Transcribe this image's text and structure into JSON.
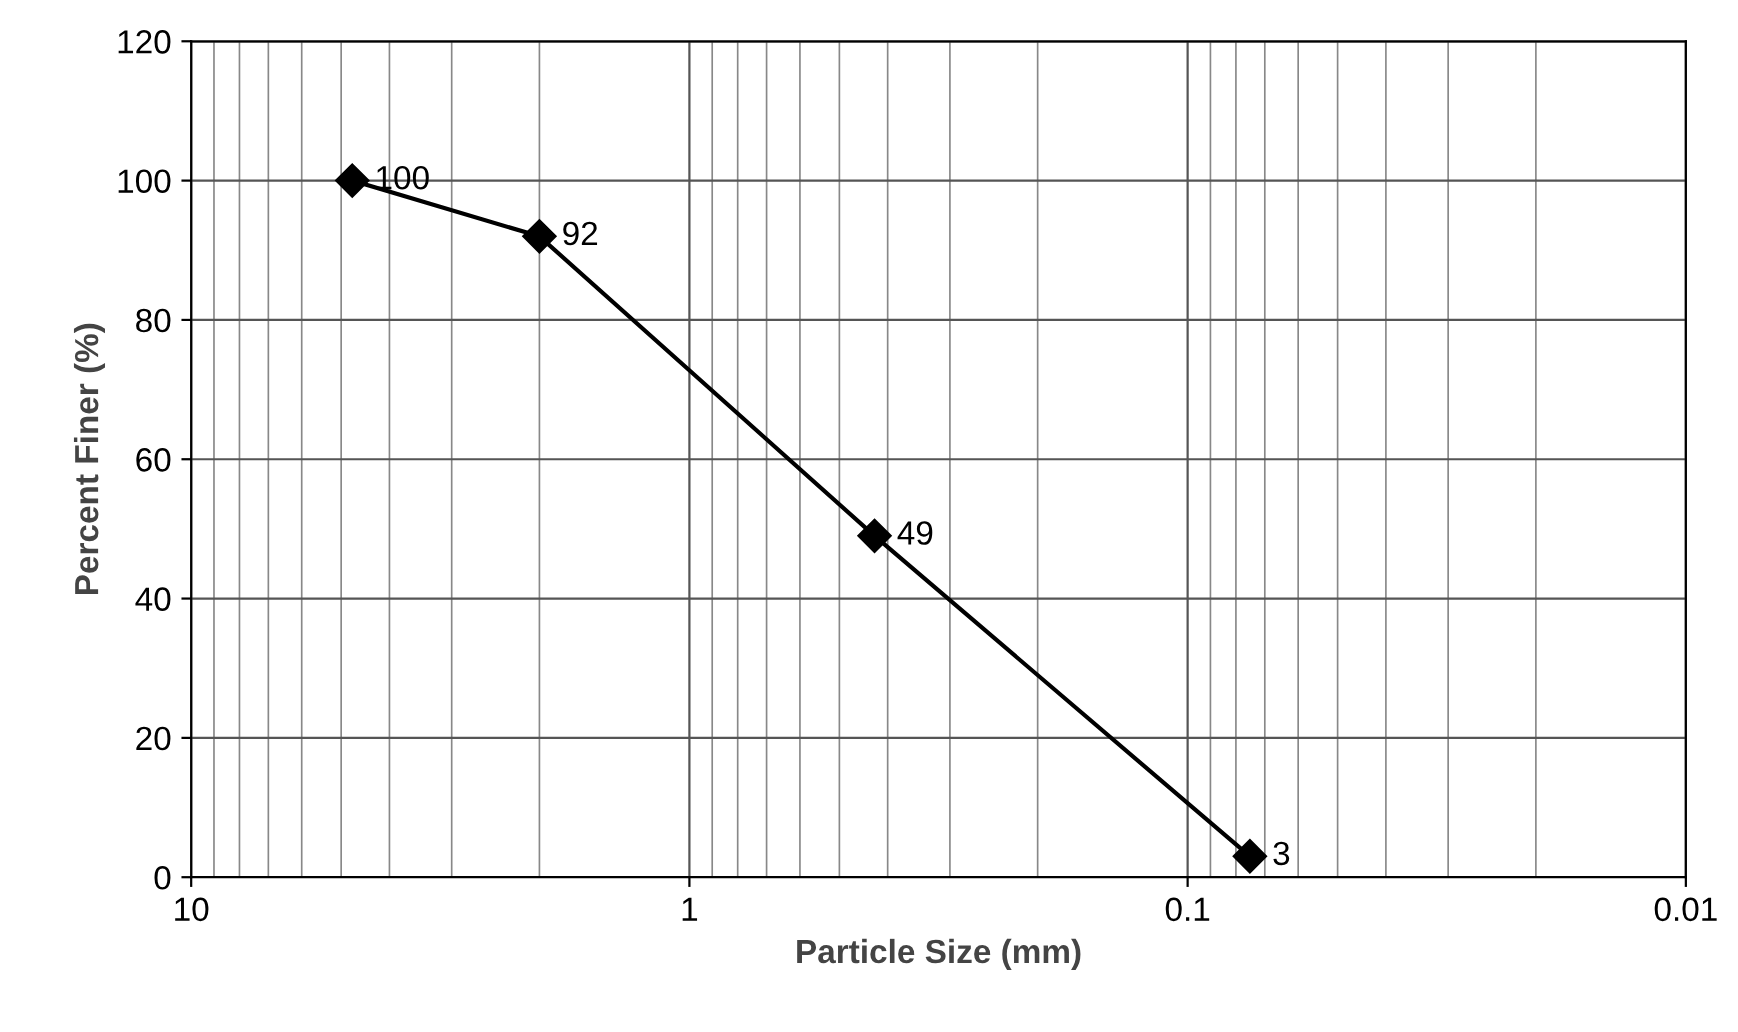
{
  "chart_data": {
    "type": "line",
    "xlabel": "Particle Size (mm)",
    "ylabel": "Percent Finer (%)",
    "x": [
      4.75,
      2.0,
      0.425,
      0.075
    ],
    "series": [
      {
        "color": "#000000",
        "values": [
          100,
          92,
          49,
          3
        ]
      }
    ],
    "log": "x",
    "xlim": [
      10,
      0.01
    ],
    "xticks": [
      10,
      1,
      0.1,
      0.01
    ],
    "ylim": [
      0,
      120
    ],
    "yticks": [
      0,
      20,
      40,
      60,
      80,
      100,
      120
    ],
    "grid": true,
    "marker": "diamond",
    "line_style": "solid",
    "data_labels": true,
    "legend": false
  }
}
